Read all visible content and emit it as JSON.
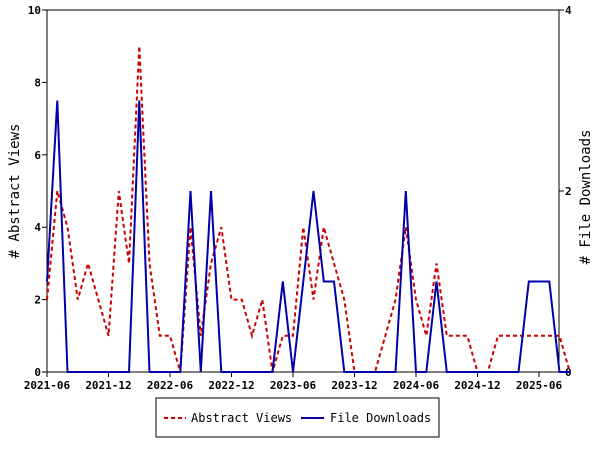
{
  "chart_data": {
    "type": "line",
    "x_tick_labels": [
      "2021-06",
      "2021-12",
      "2022-06",
      "2022-12",
      "2023-06",
      "2023-12",
      "2024-06",
      "2024-12",
      "2025-06"
    ],
    "x_tick_index": [
      0,
      6,
      12,
      18,
      24,
      30,
      36,
      42,
      48
    ],
    "x_range_months": [
      0,
      51
    ],
    "ylabel_left": "# Abstract Views",
    "ylabel_right": "# File Downloads",
    "ylim_left": [
      0,
      10
    ],
    "ylim_right": [
      0,
      4
    ],
    "yticks_left": [
      0,
      2,
      4,
      6,
      8,
      10
    ],
    "yticks_right": [
      0,
      2,
      4
    ],
    "grid": false,
    "legend_position": "bottom",
    "series": [
      {
        "name": "Abstract Views",
        "axis": "left",
        "color": "#cc0000",
        "style": "dashed",
        "values": [
          2,
          5,
          4,
          2,
          3,
          2,
          1,
          5,
          3,
          9,
          3,
          1,
          1,
          0,
          4,
          1,
          3,
          4,
          2,
          2,
          1,
          2,
          0,
          1,
          1,
          4,
          2,
          4,
          3,
          2,
          0,
          0,
          0,
          1,
          2,
          4,
          2,
          1,
          3,
          1,
          1,
          1,
          0,
          0,
          1,
          1,
          1,
          1,
          1,
          1,
          1,
          0
        ]
      },
      {
        "name": "File Downloads",
        "axis": "right",
        "color": "#0000aa",
        "style": "solid",
        "values": [
          1,
          3,
          0,
          0,
          0,
          0,
          0,
          0,
          0,
          3,
          0,
          0,
          0,
          0,
          2,
          0,
          2,
          0,
          0,
          0,
          0,
          0,
          0,
          1,
          0,
          1,
          2,
          1,
          1,
          0,
          0,
          0,
          0,
          0,
          0,
          2,
          0,
          0,
          1,
          0,
          0,
          0,
          0,
          0,
          0,
          0,
          0,
          1,
          1,
          1,
          0,
          0
        ]
      }
    ]
  }
}
